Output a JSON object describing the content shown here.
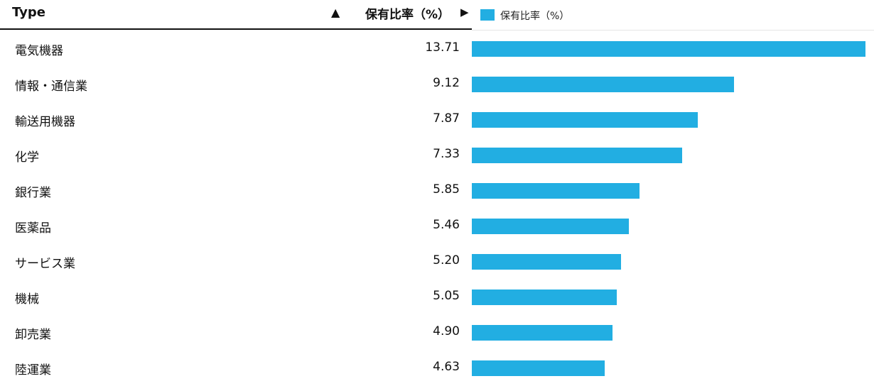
{
  "header": {
    "type_label": "Type",
    "sort_icon": "▲",
    "value_label": "保有比率（%）",
    "arrow_icon": "▶"
  },
  "colors": {
    "bar": "#22aee2"
  },
  "chart_data": {
    "type": "bar",
    "orientation": "horizontal",
    "categories": [
      "電気機器",
      "情報・通信業",
      "輸送用機器",
      "化学",
      "銀行業",
      "医薬品",
      "サービス業",
      "機械",
      "卸売業",
      "陸運業"
    ],
    "value_labels": [
      "13.71",
      "9.12",
      "7.87",
      "7.33",
      "5.85",
      "5.46",
      "5.20",
      "5.05",
      "4.90",
      "4.63"
    ],
    "series": [
      {
        "name": "保有比率（%）",
        "values": [
          13.71,
          9.12,
          7.87,
          7.33,
          5.85,
          5.46,
          5.2,
          5.05,
          4.9,
          4.63
        ]
      }
    ],
    "legend_position": "top-left",
    "grid": false
  }
}
